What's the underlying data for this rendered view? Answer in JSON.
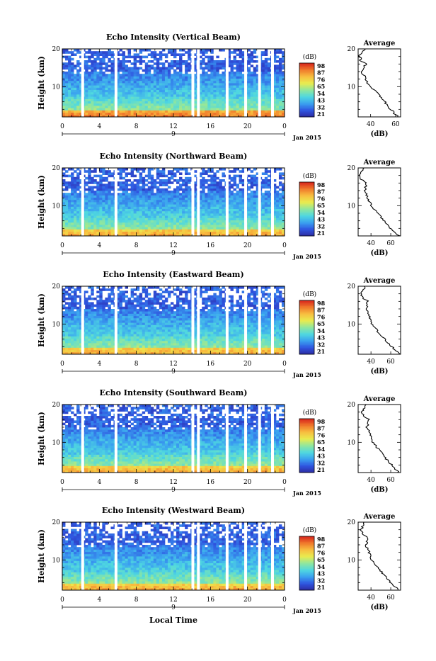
{
  "chart_data": [
    {
      "type": "heatmap",
      "title": "Echo Intensity (Vertical Beam)",
      "ylabel": "Height (km)",
      "y_ticks": [
        "10",
        "20"
      ],
      "ylim": [
        2,
        20
      ],
      "x_ticks": [
        "0",
        "4",
        "8",
        "12",
        "16",
        "20",
        "0"
      ],
      "xlim": [
        0,
        24
      ],
      "day_marker": "9",
      "date_label": "Jan 2015",
      "colorbar": {
        "unit": "(dB)",
        "labels": [
          "21",
          "32",
          "43",
          "54",
          "65",
          "76",
          "87",
          "98"
        ]
      },
      "gaps_hours": [
        2.2,
        5.8,
        14.1,
        14.7,
        17.8,
        19.8,
        21.3,
        22.7
      ],
      "profile": {
        "title": "Average",
        "xlabel": "(dB)",
        "x_ticks": [
          "40",
          "60"
        ],
        "xlim": [
          30,
          64
        ],
        "ylim": [
          2,
          20
        ],
        "heights": [
          2,
          4,
          6,
          8,
          10,
          12,
          14,
          16,
          17,
          18,
          19,
          20
        ],
        "values": [
          62,
          56,
          51,
          46,
          40,
          36,
          33,
          36,
          32,
          31,
          33,
          36
        ]
      }
    },
    {
      "type": "heatmap",
      "title": "Echo Intensity (Northward Beam)",
      "ylabel": "Height (km)",
      "y_ticks": [
        "10",
        "20"
      ],
      "ylim": [
        2,
        20
      ],
      "x_ticks": [
        "0",
        "4",
        "8",
        "12",
        "16",
        "20",
        "0"
      ],
      "xlim": [
        0,
        24
      ],
      "day_marker": "9",
      "date_label": "Jan 2015",
      "colorbar": {
        "unit": "(dB)",
        "labels": [
          "21",
          "32",
          "43",
          "54",
          "65",
          "76",
          "87",
          "98"
        ]
      },
      "gaps_hours": [
        2.2,
        5.8,
        14.1,
        14.7,
        17.8,
        19.8,
        21.3,
        22.7
      ],
      "profile": {
        "title": "Average",
        "xlabel": "(dB)",
        "x_ticks": [
          "40",
          "60"
        ],
        "xlim": [
          27,
          70
        ],
        "ylim": [
          2,
          20
        ],
        "heights": [
          2,
          4,
          6,
          8,
          10,
          12,
          14,
          16,
          17,
          18,
          19,
          20
        ],
        "values": [
          69,
          60,
          53,
          47,
          40,
          37,
          34,
          35,
          30,
          29,
          31,
          33
        ]
      }
    },
    {
      "type": "heatmap",
      "title": "Echo Intensity (Eastward Beam)",
      "ylabel": "Height (km)",
      "y_ticks": [
        "10",
        "20"
      ],
      "ylim": [
        2,
        20
      ],
      "x_ticks": [
        "0",
        "4",
        "8",
        "12",
        "16",
        "20",
        "0"
      ],
      "xlim": [
        0,
        24
      ],
      "day_marker": "9",
      "date_label": "Jan 2015",
      "colorbar": {
        "unit": "(dB)",
        "labels": [
          "21",
          "32",
          "43",
          "54",
          "65",
          "76",
          "87",
          "98"
        ]
      },
      "gaps_hours": [
        2.2,
        5.8,
        14.1,
        14.7,
        17.8,
        19.8,
        21.3,
        22.7
      ],
      "profile": {
        "title": "Average",
        "xlabel": "(dB)",
        "x_ticks": [
          "40",
          "60"
        ],
        "xlim": [
          27,
          70
        ],
        "ylim": [
          2,
          20
        ],
        "heights": [
          2,
          4,
          6,
          8,
          10,
          12,
          14,
          16,
          17,
          18,
          19,
          20
        ],
        "values": [
          69,
          61,
          54,
          47,
          41,
          38,
          35,
          37,
          31,
          30,
          32,
          34
        ]
      }
    },
    {
      "type": "heatmap",
      "title": "Echo Intensity (Southward Beam)",
      "ylabel": "Height (km)",
      "y_ticks": [
        "10",
        "20"
      ],
      "ylim": [
        2,
        20
      ],
      "x_ticks": [
        "0",
        "4",
        "8",
        "12",
        "16",
        "20",
        "0"
      ],
      "xlim": [
        0,
        24
      ],
      "day_marker": "9",
      "date_label": "Jan 2015",
      "colorbar": {
        "unit": "(dB)",
        "labels": [
          "21",
          "32",
          "43",
          "54",
          "65",
          "76",
          "87",
          "98"
        ]
      },
      "gaps_hours": [
        2.2,
        5.8,
        14.1,
        14.7,
        17.8,
        19.8,
        21.3,
        22.7
      ],
      "profile": {
        "title": "Average",
        "xlabel": "(dB)",
        "x_ticks": [
          "40",
          "60"
        ],
        "xlim": [
          27,
          70
        ],
        "ylim": [
          2,
          20
        ],
        "heights": [
          2,
          4,
          6,
          8,
          10,
          12,
          14,
          16,
          17,
          18,
          19,
          20
        ],
        "values": [
          68,
          61,
          54,
          48,
          42,
          39,
          36,
          38,
          32,
          31,
          33,
          35
        ]
      }
    },
    {
      "type": "heatmap",
      "title": "Echo Intensity (Westward Beam)",
      "ylabel": "Height (km)",
      "y_ticks": [
        "10",
        "20"
      ],
      "ylim": [
        2,
        20
      ],
      "x_ticks": [
        "0",
        "4",
        "8",
        "12",
        "16",
        "20",
        "0"
      ],
      "xlim": [
        0,
        24
      ],
      "day_marker": "9",
      "date_label": "Jan 2015",
      "colorbar": {
        "unit": "(dB)",
        "labels": [
          "21",
          "32",
          "43",
          "54",
          "65",
          "76",
          "87",
          "98"
        ]
      },
      "gaps_hours": [
        2.2,
        5.8,
        14.1,
        14.7,
        17.8,
        19.8,
        21.3,
        22.7
      ],
      "profile": {
        "title": "Average",
        "xlabel": "(dB)",
        "x_ticks": [
          "40",
          "60"
        ],
        "xlim": [
          27,
          70
        ],
        "ylim": [
          2,
          20
        ],
        "heights": [
          2,
          4,
          6,
          8,
          10,
          12,
          14,
          16,
          17,
          18,
          19,
          20
        ],
        "values": [
          68,
          60,
          53,
          47,
          41,
          38,
          35,
          37,
          31,
          30,
          32,
          34
        ]
      }
    }
  ],
  "x_axis_label": "Local Time",
  "colors": {
    "scale": [
      "#2c2aa0",
      "#2f55e0",
      "#3aa0f0",
      "#4fd8e0",
      "#8ee6a0",
      "#e8ec50",
      "#f8c040",
      "#f07a2c",
      "#d8261c"
    ]
  }
}
